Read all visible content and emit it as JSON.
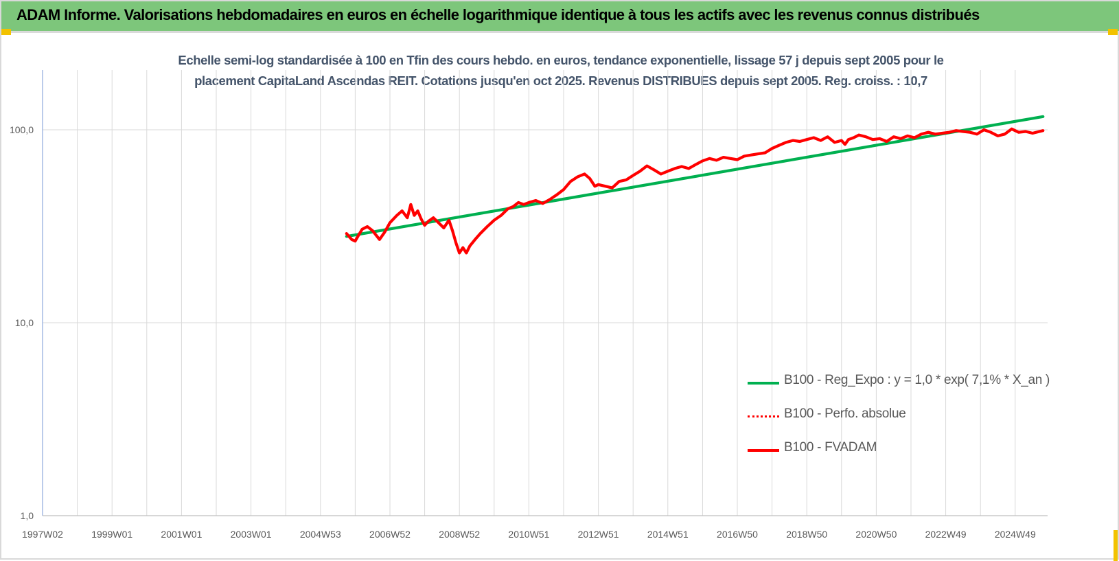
{
  "banner": {
    "title": "ADAM Informe. Valorisations hebdomadaires en euros en échelle logarithmique identique à tous les actifs avec les revenus connus distribués"
  },
  "colors": {
    "banner_bg": "#7dc67b",
    "corner_accent": "#f2c200",
    "title_text": "#44546a",
    "trend_line": "#00b050",
    "perf_line": "#ff0000",
    "fvadam_line": "#ff0000",
    "gridline": "#d9d9d9",
    "y_axis": "#8ea9db"
  },
  "chart_data": {
    "type": "line",
    "title_lines": [
      "Echelle semi-log standardisée à 100 en Tfin des cours hebdo. en euros, tendance exponentielle, lissage 57 j depuis sept 2005 pour le",
      "placement CapitaLand Ascendas REIT. Cotations jusqu'en oct 2025. Revenus DISTRIBUES depuis sept 2005. Reg. croiss. : 10,7"
    ],
    "y_scale": "log",
    "ylim": [
      1,
      200
    ],
    "y_ticks": [
      {
        "value": 1,
        "label": "1,0"
      },
      {
        "value": 10,
        "label": "10,0"
      },
      {
        "value": 100,
        "label": "100,0"
      }
    ],
    "x_range": [
      1997.0,
      2025.8
    ],
    "x_ticks": [
      {
        "pos": 1997.0,
        "label": "1997W02"
      },
      {
        "pos": 1999.0,
        "label": "1999W01"
      },
      {
        "pos": 2001.0,
        "label": "2001W01"
      },
      {
        "pos": 2003.0,
        "label": "2003W01"
      },
      {
        "pos": 2005.0,
        "label": "2004W53"
      },
      {
        "pos": 2007.0,
        "label": "2006W52"
      },
      {
        "pos": 2009.0,
        "label": "2008W52"
      },
      {
        "pos": 2011.0,
        "label": "2010W51"
      },
      {
        "pos": 2013.0,
        "label": "2012W51"
      },
      {
        "pos": 2015.0,
        "label": "2014W51"
      },
      {
        "pos": 2017.0,
        "label": "2016W50"
      },
      {
        "pos": 2019.0,
        "label": "2018W50"
      },
      {
        "pos": 2021.0,
        "label": "2020W50"
      },
      {
        "pos": 2023.0,
        "label": "2022W49"
      },
      {
        "pos": 2025.0,
        "label": "2024W49"
      }
    ],
    "grid": true,
    "legend_position": "bottom-right",
    "series": [
      {
        "name": "B100 - Reg_Expo : y = 1,0 * exp( 7,1% *  X_an )",
        "style": "solid-thick",
        "color": "#00b050",
        "x": [
          2005.75,
          2025.8
        ],
        "y": [
          28.0,
          117.0
        ]
      },
      {
        "name": "B100 - Perfo. absolue",
        "style": "dotted",
        "color": "#ff0000",
        "x": [],
        "y": []
      },
      {
        "name": "B100 - FVADAM",
        "style": "solid-thick",
        "color": "#ff0000",
        "x": [
          2005.75,
          2005.9,
          2006.0,
          2006.1,
          2006.2,
          2006.35,
          2006.5,
          2006.7,
          2006.85,
          2007.0,
          2007.2,
          2007.35,
          2007.5,
          2007.6,
          2007.7,
          2007.8,
          2007.9,
          2008.0,
          2008.1,
          2008.25,
          2008.4,
          2008.55,
          2008.7,
          2008.8,
          2008.9,
          2009.0,
          2009.1,
          2009.2,
          2009.3,
          2009.45,
          2009.6,
          2009.8,
          2010.0,
          2010.2,
          2010.4,
          2010.55,
          2010.7,
          2010.85,
          2011.0,
          2011.2,
          2011.4,
          2011.6,
          2011.8,
          2012.0,
          2012.2,
          2012.4,
          2012.6,
          2012.75,
          2012.9,
          2013.0,
          2013.2,
          2013.4,
          2013.6,
          2013.8,
          2014.0,
          2014.2,
          2014.4,
          2014.6,
          2014.8,
          2015.0,
          2015.2,
          2015.4,
          2015.6,
          2015.8,
          2016.0,
          2016.2,
          2016.4,
          2016.6,
          2016.8,
          2017.0,
          2017.2,
          2017.4,
          2017.6,
          2017.8,
          2018.0,
          2018.2,
          2018.4,
          2018.6,
          2018.8,
          2019.0,
          2019.2,
          2019.4,
          2019.6,
          2019.8,
          2020.0,
          2020.1,
          2020.2,
          2020.35,
          2020.5,
          2020.7,
          2020.9,
          2021.1,
          2021.3,
          2021.5,
          2021.7,
          2021.9,
          2022.1,
          2022.3,
          2022.5,
          2022.7,
          2022.9,
          2023.1,
          2023.3,
          2023.5,
          2023.7,
          2023.9,
          2024.1,
          2024.3,
          2024.5,
          2024.7,
          2024.9,
          2025.1,
          2025.3,
          2025.5,
          2025.8
        ],
        "y": [
          29.0,
          27.0,
          26.5,
          28.5,
          30.5,
          31.5,
          30.0,
          27.0,
          29.5,
          33.0,
          36.0,
          38.0,
          35.0,
          41.0,
          36.0,
          38.0,
          34.5,
          32.0,
          33.5,
          35.0,
          33.0,
          31.0,
          34.0,
          30.0,
          26.0,
          23.0,
          24.5,
          23.0,
          25.0,
          27.0,
          29.0,
          31.5,
          34.0,
          36.0,
          39.0,
          40.0,
          42.0,
          41.0,
          42.0,
          43.0,
          41.5,
          43.5,
          46.0,
          49.0,
          54.0,
          57.0,
          59.0,
          56.0,
          51.0,
          52.0,
          51.0,
          50.0,
          54.0,
          55.0,
          58.0,
          61.0,
          65.0,
          62.0,
          59.0,
          61.0,
          63.0,
          64.5,
          63.0,
          66.0,
          69.0,
          71.0,
          69.5,
          72.0,
          71.0,
          70.0,
          73.0,
          74.0,
          75.0,
          76.0,
          80.0,
          83.0,
          86.0,
          88.0,
          87.0,
          89.0,
          91.0,
          88.0,
          92.0,
          86.0,
          88.0,
          84.0,
          89.0,
          91.0,
          94.0,
          92.0,
          89.0,
          90.0,
          87.0,
          92.0,
          90.0,
          93.0,
          91.0,
          95.0,
          97.0,
          95.0,
          96.0,
          97.0,
          99.0,
          98.0,
          97.0,
          95.0,
          100.0,
          97.0,
          93.0,
          95.0,
          101.0,
          97.0,
          98.0,
          96.0,
          99.0
        ]
      }
    ]
  },
  "legend": {
    "items": [
      {
        "label": "B100 - Reg_Expo : y = 1,0 * exp( 7,1% *  X_an )",
        "style": "solid",
        "color": "#00b050"
      },
      {
        "label": "B100 - Perfo. absolue",
        "style": "dotted",
        "color": "#ff0000"
      },
      {
        "label": "B100 - FVADAM",
        "style": "solid",
        "color": "#ff0000"
      }
    ]
  }
}
